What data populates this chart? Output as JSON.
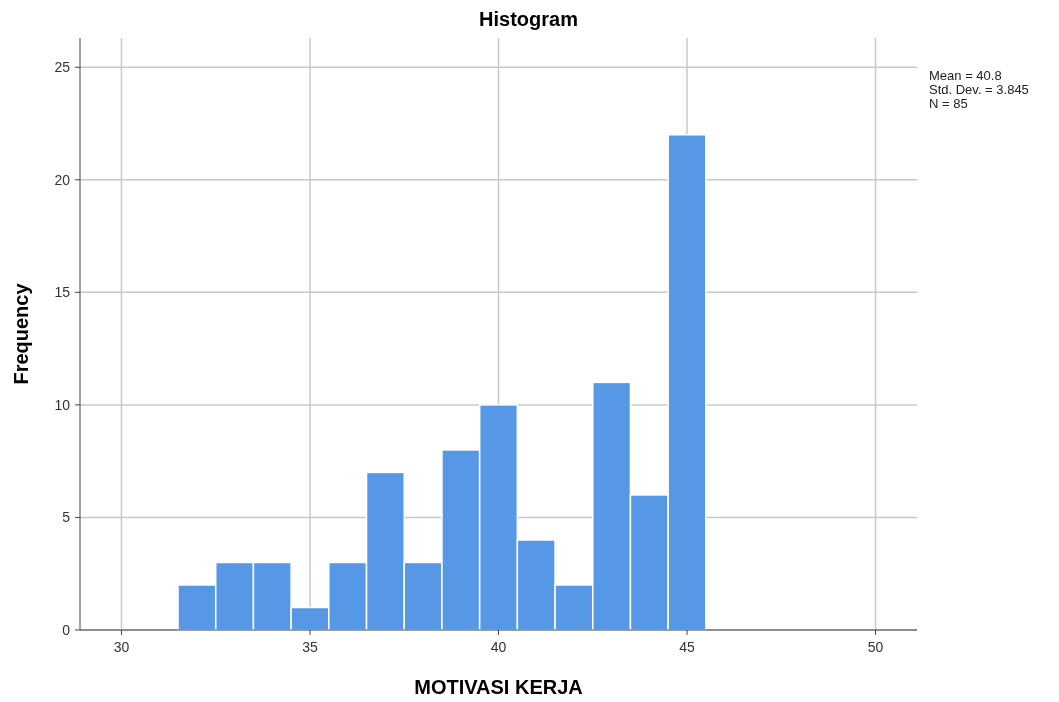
{
  "chart_data": {
    "type": "histogram",
    "title": "Histogram",
    "xlabel": "MOTIVASI KERJA",
    "ylabel": "Frequency",
    "bins": [
      31.5,
      32.5,
      33.5,
      34.5,
      35.5,
      36.5,
      37.5,
      38.5,
      39.5,
      40.5,
      41.5,
      42.5,
      43.5,
      44.5,
      45.5
    ],
    "values": [
      2,
      3,
      3,
      1,
      3,
      7,
      3,
      8,
      10,
      4,
      2,
      11,
      6,
      22
    ],
    "color": "#5698e6",
    "xlim": [
      28.9,
      51.1
    ],
    "xticks": [
      30,
      35,
      40,
      45,
      50
    ],
    "ylim": [
      0,
      26.3
    ],
    "yticks": [
      0,
      5,
      10,
      15,
      20,
      25
    ],
    "grid": true,
    "annotations": [
      "Mean = 40.8",
      "Std. Dev. = 3.845",
      "N = 85"
    ]
  }
}
